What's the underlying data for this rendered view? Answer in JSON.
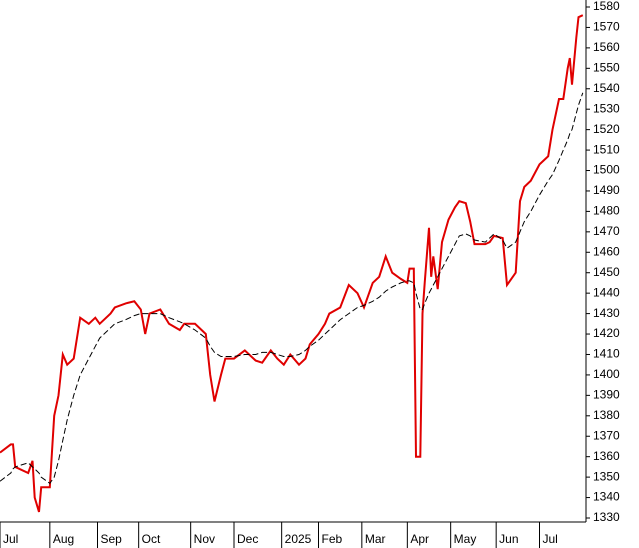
{
  "chart_data": {
    "type": "line",
    "x": [
      0,
      5,
      6,
      7,
      13,
      15,
      16,
      18,
      19,
      23,
      25,
      27,
      29,
      31,
      34,
      37,
      41,
      44,
      46,
      51,
      53,
      58,
      62,
      65,
      67,
      69,
      74,
      78,
      83,
      85,
      90,
      95,
      97,
      99,
      102,
      104,
      108,
      113,
      118,
      121,
      125,
      128,
      131,
      134,
      138,
      141,
      143,
      147,
      150,
      152,
      157,
      161,
      165,
      168,
      172,
      175,
      178,
      181,
      185,
      188,
      189,
      191,
      192,
      194,
      195,
      196,
      198,
      199,
      200,
      202,
      204,
      207,
      210,
      212,
      215,
      217,
      219,
      224,
      226,
      228,
      232,
      234,
      238,
      240,
      242,
      245,
      249,
      253,
      255,
      258,
      260,
      262,
      263,
      264,
      266,
      267,
      269
    ],
    "series": [
      {
        "color": "#e00000",
        "dashed": false,
        "values": [
          1362,
          1366,
          1366,
          1355,
          1352,
          1358,
          1340,
          1333,
          1345,
          1345,
          1380,
          1390,
          1410,
          1405,
          1408,
          1428,
          1425,
          1428,
          1425,
          1430,
          1433,
          1435,
          1436,
          1432,
          1420,
          1430,
          1432,
          1425,
          1422,
          1425,
          1425,
          1420,
          1400,
          1387,
          1400,
          1408,
          1408,
          1412,
          1407,
          1406,
          1412,
          1408,
          1405,
          1410,
          1405,
          1408,
          1415,
          1420,
          1425,
          1430,
          1433,
          1444,
          1440,
          1433,
          1445,
          1448,
          1458,
          1450,
          1447,
          1445,
          1452,
          1452,
          1360,
          1360,
          1430,
          1445,
          1472,
          1448,
          1458,
          1442,
          1465,
          1476,
          1482,
          1485,
          1484,
          1475,
          1464,
          1464,
          1465,
          1468,
          1467,
          1444,
          1450,
          1485,
          1492,
          1495,
          1503,
          1507,
          1520,
          1535,
          1535,
          1550,
          1555,
          1542,
          1565,
          1575,
          1576
        ]
      },
      {
        "color": "#000000",
        "dashed": true,
        "values": [
          1348,
          1352,
          1354,
          1355,
          1357,
          1355,
          1354,
          1352,
          1350,
          1347,
          1350,
          1358,
          1368,
          1378,
          1390,
          1400,
          1408,
          1414,
          1418,
          1423,
          1425,
          1427,
          1429,
          1430,
          1430,
          1430,
          1430,
          1428,
          1426,
          1425,
          1422,
          1418,
          1414,
          1411,
          1409,
          1409,
          1409,
          1410,
          1410,
          1411,
          1411,
          1410,
          1409,
          1409,
          1410,
          1412,
          1414,
          1417,
          1420,
          1422,
          1427,
          1430,
          1433,
          1434,
          1436,
          1438,
          1441,
          1443,
          1445,
          1446,
          1446,
          1445,
          1440,
          1432,
          1432,
          1435,
          1440,
          1442,
          1444,
          1448,
          1452,
          1458,
          1464,
          1468,
          1469,
          1468,
          1466,
          1465,
          1467,
          1469,
          1466,
          1462,
          1465,
          1470,
          1475,
          1480,
          1488,
          1495,
          1498,
          1505,
          1510,
          1515,
          1518,
          1520,
          1528,
          1532,
          1538
        ]
      }
    ],
    "xlim": [
      0,
      270
    ],
    "xticks": [
      {
        "value": 0,
        "label": "Jul"
      },
      {
        "value": 23,
        "label": "Aug"
      },
      {
        "value": 45,
        "label": "Sep"
      },
      {
        "value": 64,
        "label": "Oct"
      },
      {
        "value": 88,
        "label": "Nov"
      },
      {
        "value": 108,
        "label": "Dec"
      },
      {
        "value": 130,
        "label": "2025"
      },
      {
        "value": 147,
        "label": "Feb"
      },
      {
        "value": 167,
        "label": "Mar"
      },
      {
        "value": 188,
        "label": "Apr"
      },
      {
        "value": 208,
        "label": "May"
      },
      {
        "value": 229,
        "label": "Jun"
      },
      {
        "value": 249,
        "label": "Jul"
      }
    ],
    "ylim": [
      1330,
      1580
    ],
    "yticks": [
      1330,
      1340,
      1350,
      1360,
      1370,
      1380,
      1390,
      1400,
      1410,
      1420,
      1430,
      1440,
      1450,
      1460,
      1470,
      1480,
      1490,
      1500,
      1510,
      1520,
      1530,
      1540,
      1550,
      1560,
      1570,
      1580
    ],
    "grid": false
  }
}
